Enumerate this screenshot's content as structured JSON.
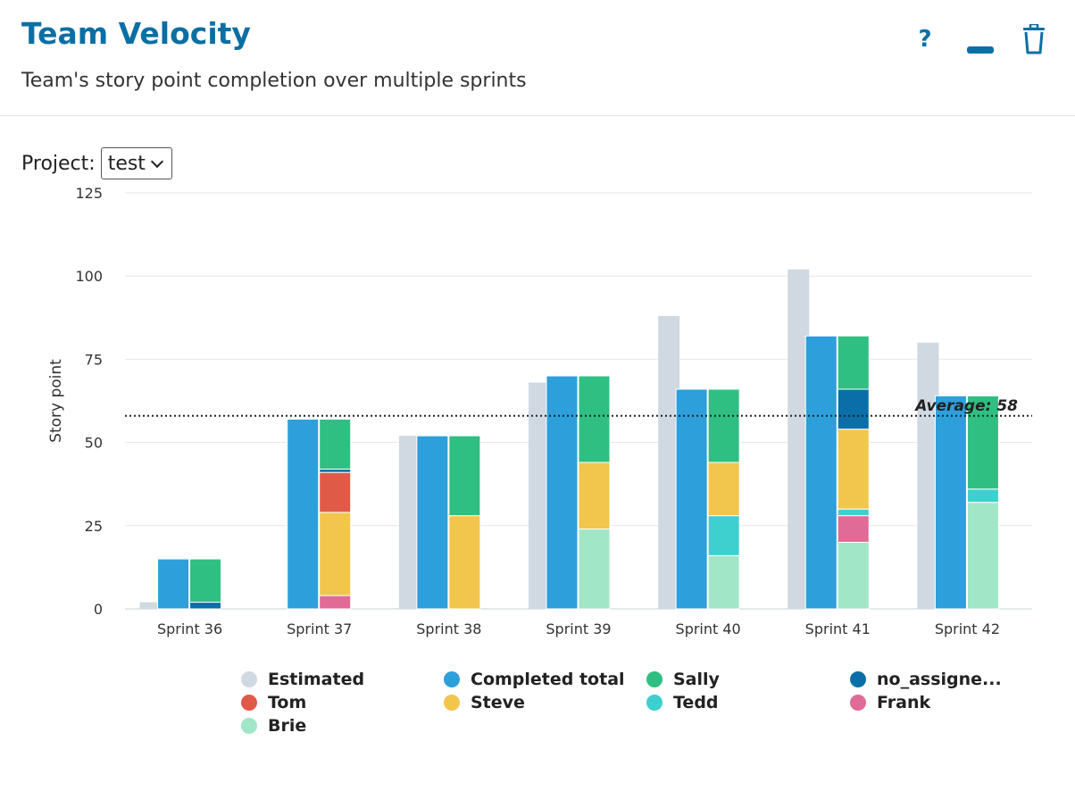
{
  "header": {
    "title": "Team Velocity",
    "subtitle": "Team's story point completion over multiple sprints",
    "help_label": "?"
  },
  "project": {
    "label": "Project:",
    "value": "test"
  },
  "colors": {
    "Estimated": "#d0d8e1",
    "Completed total": "#2d9fdb",
    "Sally": "#2fbf82",
    "no_assignee": "#0a6fa8",
    "Tom": "#e05a48",
    "Steve": "#f2c54d",
    "Tedd": "#3ecfcf",
    "Frank": "#e06b96",
    "Brie": "#a0e6c7"
  },
  "chart_data": {
    "type": "bar",
    "ylabel": "Story point",
    "ylim": [
      0,
      125
    ],
    "yticks": [
      "0",
      "25",
      "50",
      "75",
      "100",
      "125"
    ],
    "grid": true,
    "categories": [
      "Sprint 36",
      "Sprint 37",
      "Sprint 38",
      "Sprint 39",
      "Sprint 40",
      "Sprint 41",
      "Sprint 42"
    ],
    "estimated": [
      2,
      0,
      52,
      68,
      88,
      102,
      80
    ],
    "completed_total": [
      15,
      57,
      52,
      70,
      66,
      82,
      64
    ],
    "stack_series": [
      {
        "name": "Brie",
        "values": [
          0,
          0,
          0,
          24,
          16,
          20,
          32
        ]
      },
      {
        "name": "Frank",
        "values": [
          0,
          4,
          0,
          0,
          0,
          8,
          0
        ]
      },
      {
        "name": "Tedd",
        "values": [
          0,
          0,
          0,
          0,
          12,
          2,
          4
        ]
      },
      {
        "name": "Steve",
        "values": [
          0,
          25,
          28,
          20,
          16,
          24,
          0
        ]
      },
      {
        "name": "Tom",
        "values": [
          0,
          12,
          0,
          0,
          0,
          0,
          0
        ]
      },
      {
        "name": "no_assignee",
        "values": [
          2,
          1,
          0,
          0,
          0,
          12,
          0
        ]
      },
      {
        "name": "Sally",
        "values": [
          13,
          15,
          24,
          26,
          22,
          16,
          28
        ]
      }
    ],
    "average": {
      "label": "Average: 58",
      "value": 58
    }
  },
  "legend": [
    {
      "label": "Estimated",
      "color": "#d0d8e1"
    },
    {
      "label": "Completed total",
      "color": "#2d9fdb"
    },
    {
      "label": "Sally",
      "color": "#2fbf82"
    },
    {
      "label": "no_assigne...",
      "color": "#0a6fa8"
    },
    {
      "label": "Tom",
      "color": "#e05a48"
    },
    {
      "label": "Steve",
      "color": "#f2c54d"
    },
    {
      "label": "Tedd",
      "color": "#3ecfcf"
    },
    {
      "label": "Frank",
      "color": "#e06b96"
    },
    {
      "label": "Brie",
      "color": "#a0e6c7"
    }
  ]
}
